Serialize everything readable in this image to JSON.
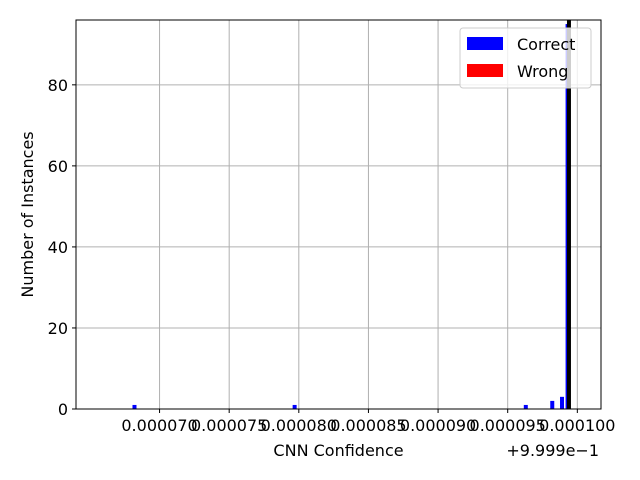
{
  "chart_data": {
    "type": "bar",
    "xlabel": "CNN Confidence",
    "ylabel": "Number of Instances",
    "offset_text": "+9.999e−1",
    "xlim": [
      6.4e-05,
      0.0001017
    ],
    "ylim": [
      0,
      96
    ],
    "x_ticks": [
      7e-05,
      7.5e-05,
      8e-05,
      8.5e-05,
      9e-05,
      9.5e-05,
      0.0001
    ],
    "x_tick_labels": [
      "0.000070",
      "0.000075",
      "0.000080",
      "0.000085",
      "0.000090",
      "0.000095",
      "0.000100"
    ],
    "y_ticks": [
      0,
      20,
      40,
      60,
      80
    ],
    "y_tick_labels": [
      "0",
      "20",
      "40",
      "60",
      "80"
    ],
    "grid": true,
    "legend_position": "top-right",
    "reference_line_x": 9.94e-05,
    "series": [
      {
        "name": "Correct",
        "color": "#0000ff",
        "points": [
          {
            "x": 6.82e-05,
            "y": 1
          },
          {
            "x": 7.97e-05,
            "y": 1
          },
          {
            "x": 9.63e-05,
            "y": 1
          },
          {
            "x": 9.82e-05,
            "y": 2
          },
          {
            "x": 9.89e-05,
            "y": 3
          },
          {
            "x": 9.93e-05,
            "y": 95
          }
        ]
      },
      {
        "name": "Wrong",
        "color": "#ff0000",
        "points": []
      }
    ]
  }
}
